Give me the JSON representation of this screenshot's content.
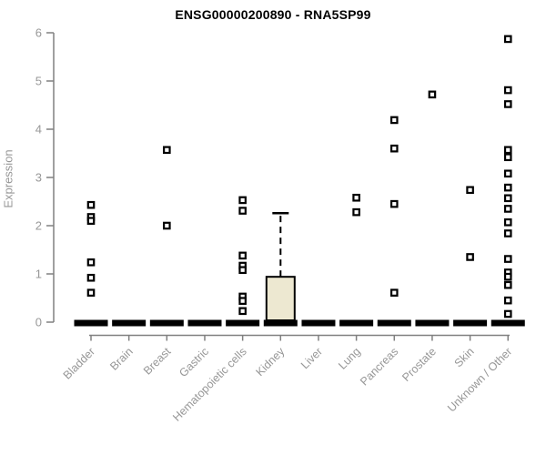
{
  "title": "ENSG00000200890 - RNA5SP99",
  "chart_data": {
    "type": "boxplot",
    "title": "ENSG00000200890 - RNA5SP99",
    "xlabel": "",
    "ylabel": "Expression",
    "ylim": [
      0,
      6
    ],
    "yticks": [
      0,
      1,
      2,
      3,
      4,
      5,
      6
    ],
    "grid": false,
    "legend": "none",
    "marker_style": "open-square",
    "categories": [
      "Bladder",
      "Brain",
      "Breast",
      "Gastric",
      "Hematopoietic cells",
      "Kidney",
      "Liver",
      "Lung",
      "Pancreas",
      "Prostate",
      "Skin",
      "Unknown / Other"
    ],
    "boxes": [
      {
        "category": "Bladder",
        "median": 0,
        "q1": 0,
        "q3": 0,
        "whisker_low": 0,
        "whisker_high": 0,
        "outliers": [
          2.43,
          2.18,
          2.1,
          1.24,
          0.92,
          0.61
        ]
      },
      {
        "category": "Brain",
        "median": 0,
        "q1": 0,
        "q3": 0,
        "whisker_low": 0,
        "whisker_high": 0,
        "outliers": []
      },
      {
        "category": "Breast",
        "median": 0,
        "q1": 0,
        "q3": 0,
        "whisker_low": 0,
        "whisker_high": 0,
        "outliers": [
          3.57,
          2.0
        ]
      },
      {
        "category": "Gastric",
        "median": 0,
        "q1": 0,
        "q3": 0,
        "whisker_low": 0,
        "whisker_high": 0,
        "outliers": []
      },
      {
        "category": "Hematopoietic cells",
        "median": 0,
        "q1": 0,
        "q3": 0,
        "whisker_low": 0,
        "whisker_high": 0,
        "outliers": [
          2.53,
          2.31,
          1.38,
          1.17,
          1.08,
          0.53,
          0.44,
          0.23
        ]
      },
      {
        "category": "Kidney",
        "median": 0,
        "q1": 0,
        "q3": 0.94,
        "whisker_low": 0,
        "whisker_high": 2.26,
        "outliers": []
      },
      {
        "category": "Liver",
        "median": 0,
        "q1": 0,
        "q3": 0,
        "whisker_low": 0,
        "whisker_high": 0,
        "outliers": []
      },
      {
        "category": "Lung",
        "median": 0,
        "q1": 0,
        "q3": 0,
        "whisker_low": 0,
        "whisker_high": 0,
        "outliers": [
          2.58,
          2.28
        ]
      },
      {
        "category": "Pancreas",
        "median": 0,
        "q1": 0,
        "q3": 0,
        "whisker_low": 0,
        "whisker_high": 0,
        "outliers": [
          4.19,
          3.6,
          2.45,
          0.61
        ]
      },
      {
        "category": "Prostate",
        "median": 0,
        "q1": 0,
        "q3": 0,
        "whisker_low": 0,
        "whisker_high": 0,
        "outliers": [
          4.72
        ]
      },
      {
        "category": "Skin",
        "median": 0,
        "q1": 0,
        "q3": 0,
        "whisker_low": 0,
        "whisker_high": 0,
        "outliers": [
          2.74,
          1.35
        ]
      },
      {
        "category": "Unknown / Other",
        "median": 0,
        "q1": 0,
        "q3": 0,
        "whisker_low": 0,
        "whisker_high": 0,
        "outliers": [
          5.87,
          4.81,
          4.52,
          3.57,
          3.42,
          3.08,
          2.79,
          2.57,
          2.35,
          2.07,
          1.84,
          1.31,
          1.03,
          0.94,
          0.77,
          0.45,
          0.17
        ]
      }
    ],
    "colors": {
      "box_fill": "#EDE8D1",
      "box_stroke": "#000000",
      "median_bar": "#000000",
      "marker": "#000000",
      "axis": "#808080",
      "tick_label": "#979797",
      "title": "#000000"
    }
  }
}
